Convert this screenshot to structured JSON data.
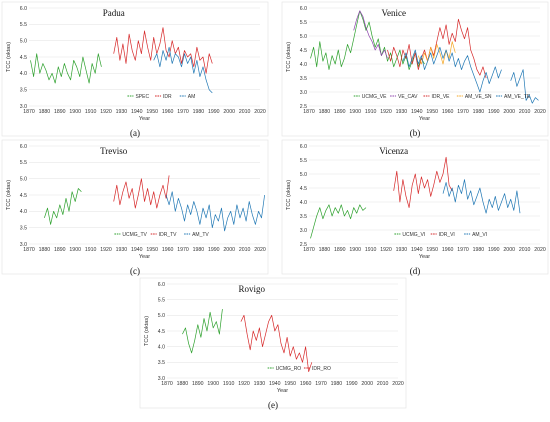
{
  "colors": {
    "green": "#2ca02c",
    "red": "#d62728",
    "blue": "#1f77b4",
    "purple": "#8e44ad",
    "orange": "#f5a623"
  },
  "chart_data": [
    {
      "type": "line",
      "title": "Padua",
      "caption": "(a)",
      "xlabel": "Year",
      "ylabel": "TCC (oktas)",
      "xlim": [
        1870,
        2020
      ],
      "ylim": [
        3.0,
        6.0
      ],
      "xticks": [
        1870,
        1880,
        1890,
        1900,
        1910,
        1920,
        1930,
        1940,
        1950,
        1960,
        1970,
        1980,
        1990,
        2000,
        2010,
        2020
      ],
      "yticks": [
        3.0,
        3.5,
        4.0,
        4.5,
        5.0,
        5.5,
        6.0
      ],
      "legend": "bottom",
      "series": [
        {
          "name": "SPEC",
          "color": "#2ca02c",
          "x": [
            1871,
            1873,
            1875,
            1877,
            1879,
            1881,
            1883,
            1885,
            1887,
            1889,
            1891,
            1893,
            1895,
            1897,
            1899,
            1901,
            1903,
            1905,
            1907,
            1909,
            1911,
            1913,
            1915,
            1917
          ],
          "y": [
            4.4,
            3.9,
            4.6,
            4.0,
            4.3,
            4.1,
            3.8,
            4.0,
            3.7,
            4.2,
            3.9,
            4.3,
            4.0,
            3.8,
            4.4,
            4.2,
            3.9,
            4.5,
            4.1,
            3.7,
            4.3,
            4.0,
            4.6,
            4.2
          ]
        },
        {
          "name": "IDR",
          "color": "#d62728",
          "x": [
            1925,
            1927,
            1929,
            1931,
            1933,
            1935,
            1937,
            1939,
            1941,
            1943,
            1945,
            1947,
            1949,
            1951,
            1953,
            1955,
            1957,
            1959,
            1961,
            1963,
            1965,
            1967,
            1969,
            1971,
            1973,
            1975,
            1977,
            1979,
            1981,
            1983,
            1985,
            1987,
            1989
          ],
          "y": [
            4.6,
            5.1,
            4.4,
            4.9,
            4.3,
            5.2,
            4.7,
            4.4,
            5.0,
            4.6,
            5.3,
            4.8,
            4.4,
            5.1,
            4.6,
            4.9,
            5.4,
            4.7,
            4.5,
            5.0,
            4.6,
            4.8,
            4.3,
            4.7,
            4.5,
            4.6,
            4.2,
            4.8,
            4.4,
            4.5,
            4.0,
            4.6,
            4.3
          ]
        },
        {
          "name": "AM",
          "color": "#1f77b4",
          "x": [
            1951,
            1953,
            1955,
            1957,
            1959,
            1961,
            1963,
            1965,
            1967,
            1969,
            1971,
            1973,
            1975,
            1977,
            1979,
            1981,
            1983,
            1985,
            1987,
            1989
          ],
          "y": [
            4.4,
            4.6,
            4.2,
            4.7,
            4.4,
            4.8,
            4.3,
            4.6,
            4.5,
            4.2,
            4.6,
            4.3,
            4.5,
            4.0,
            4.4,
            3.9,
            4.2,
            3.8,
            3.5,
            3.4
          ]
        }
      ]
    },
    {
      "type": "line",
      "title": "Venice",
      "caption": "(b)",
      "xlabel": "Year",
      "ylabel": "TCC (oktas)",
      "xlim": [
        1870,
        2020
      ],
      "ylim": [
        2.5,
        6.0
      ],
      "xticks": [
        1870,
        1880,
        1890,
        1900,
        1910,
        1920,
        1930,
        1940,
        1950,
        1960,
        1970,
        1980,
        1990,
        2000,
        2010,
        2020
      ],
      "yticks": [
        2.5,
        3.0,
        3.5,
        4.0,
        4.5,
        5.0,
        5.5,
        6.0
      ],
      "legend": "bottom",
      "series": [
        {
          "name": "UCMG_VE",
          "color": "#2ca02c",
          "x": [
            1871,
            1873,
            1875,
            1877,
            1879,
            1881,
            1883,
            1885,
            1887,
            1889,
            1891,
            1893,
            1895,
            1897,
            1899,
            1901,
            1903,
            1905,
            1907,
            1909,
            1911,
            1913,
            1915,
            1917,
            1919,
            1921,
            1923,
            1925,
            1927,
            1929,
            1931,
            1933,
            1935,
            1937,
            1939,
            1941,
            1943,
            1945
          ],
          "y": [
            4.2,
            4.6,
            3.9,
            4.8,
            4.1,
            4.4,
            3.8,
            4.3,
            4.0,
            4.5,
            3.9,
            4.2,
            4.7,
            4.4,
            4.9,
            5.4,
            5.9,
            5.6,
            5.2,
            5.5,
            5.0,
            4.6,
            4.9,
            4.3,
            4.6,
            4.1,
            4.4,
            3.9,
            4.2,
            4.5,
            4.0,
            4.3,
            3.8,
            4.1,
            4.4,
            3.9,
            4.2,
            4.0
          ]
        },
        {
          "name": "VE_CAV",
          "color": "#8e44ad",
          "x": [
            1899,
            1901,
            1903,
            1905,
            1907,
            1909,
            1911,
            1913,
            1915,
            1917,
            1919,
            1921
          ],
          "y": [
            5.2,
            5.6,
            5.9,
            5.7,
            5.3,
            5.0,
            4.8,
            4.5,
            4.7,
            4.3,
            4.5,
            4.2
          ]
        },
        {
          "name": "IDR_VE",
          "color": "#d62728",
          "x": [
            1921,
            1923,
            1925,
            1927,
            1929,
            1931,
            1933,
            1935,
            1937,
            1939,
            1941,
            1943,
            1945,
            1947,
            1949,
            1951,
            1953,
            1955,
            1957,
            1959,
            1961,
            1963,
            1965,
            1967,
            1969,
            1971,
            1973,
            1975,
            1977,
            1979,
            1981,
            1983,
            1985
          ],
          "y": [
            4.5,
            4.1,
            4.6,
            4.3,
            3.9,
            4.5,
            4.2,
            4.7,
            4.0,
            4.4,
            3.8,
            4.2,
            4.5,
            4.1,
            4.6,
            4.3,
            4.8,
            5.3,
            4.9,
            5.4,
            4.7,
            5.1,
            4.8,
            5.6,
            5.2,
            4.9,
            5.3,
            4.5,
            4.2,
            3.8,
            3.6,
            3.9,
            3.5
          ]
        },
        {
          "name": "AM_VE_SN",
          "color": "#f5a623",
          "x": [
            1941,
            1943,
            1945,
            1947,
            1949,
            1951,
            1953,
            1955,
            1957,
            1959,
            1961,
            1963,
            1965
          ],
          "y": [
            4.3,
            4.0,
            4.4,
            4.1,
            4.6,
            4.2,
            4.7,
            4.4,
            4.0,
            4.5,
            4.2,
            4.8,
            4.4
          ]
        },
        {
          "name": "AM_VE_TE",
          "color": "#1f77b4",
          "x": [
            1931,
            1933,
            1935,
            1937,
            1939,
            1941,
            1943,
            1945,
            1947,
            1949,
            1951,
            1953,
            1955,
            1957,
            1959,
            1961,
            1963,
            1965,
            1967,
            1969,
            1971,
            1973,
            1975,
            1977,
            1979,
            1981,
            1983,
            1985,
            1987,
            1989,
            1991,
            1993,
            1995,
            2001,
            2003,
            2005,
            2007,
            2009,
            2011,
            2013,
            2015,
            2017,
            2019
          ],
          "y": [
            4.1,
            4.4,
            3.9,
            4.2,
            4.5,
            4.0,
            4.3,
            3.8,
            4.1,
            4.4,
            4.0,
            4.3,
            4.6,
            4.2,
            4.5,
            4.1,
            4.4,
            3.9,
            4.2,
            3.8,
            4.1,
            4.3,
            3.9,
            3.6,
            3.3,
            3.0,
            3.4,
            3.7,
            3.3,
            3.6,
            3.9,
            3.5,
            3.8,
            3.4,
            3.7,
            3.2,
            3.5,
            3.8,
            2.7,
            2.9,
            2.6,
            2.8,
            2.7
          ]
        }
      ]
    },
    {
      "type": "line",
      "title": "Treviso",
      "caption": "(c)",
      "xlabel": "Year",
      "ylabel": "TCC (oktas)",
      "xlim": [
        1870,
        2020
      ],
      "ylim": [
        3.0,
        6.0
      ],
      "xticks": [
        1870,
        1880,
        1890,
        1900,
        1910,
        1920,
        1930,
        1940,
        1950,
        1960,
        1970,
        1980,
        1990,
        2000,
        2010,
        2020
      ],
      "yticks": [
        3.0,
        3.5,
        4.0,
        4.5,
        5.0,
        5.5,
        6.0
      ],
      "legend": "bottom",
      "series": [
        {
          "name": "UCMG_TV",
          "color": "#2ca02c",
          "x": [
            1880,
            1882,
            1884,
            1886,
            1888,
            1890,
            1892,
            1894,
            1896,
            1898,
            1900,
            1902,
            1904
          ],
          "y": [
            3.8,
            4.1,
            3.6,
            4.0,
            3.8,
            4.2,
            3.9,
            4.4,
            4.0,
            4.6,
            4.3,
            4.7,
            4.6
          ]
        },
        {
          "name": "IDR_TV",
          "color": "#d62728",
          "x": [
            1925,
            1927,
            1929,
            1931,
            1933,
            1935,
            1937,
            1939,
            1941,
            1943,
            1945,
            1947,
            1949,
            1951,
            1953,
            1955,
            1957,
            1959,
            1961
          ],
          "y": [
            4.3,
            4.8,
            4.2,
            4.6,
            4.9,
            4.4,
            4.7,
            4.1,
            4.5,
            5.0,
            4.3,
            4.7,
            4.2,
            4.6,
            4.1,
            4.5,
            4.8,
            4.4,
            5.1
          ]
        },
        {
          "name": "AM_TV",
          "color": "#1f77b4",
          "x": [
            1959,
            1961,
            1963,
            1965,
            1967,
            1969,
            1971,
            1973,
            1975,
            1977,
            1979,
            1981,
            1983,
            1985,
            1987,
            1989,
            1991,
            1993,
            1995,
            1997,
            1999,
            2001,
            2003,
            2005,
            2007,
            2009,
            2011,
            2013,
            2015,
            2017,
            2019,
            2021,
            2023
          ],
          "y": [
            4.5,
            4.2,
            4.6,
            4.0,
            4.4,
            4.1,
            3.7,
            4.2,
            3.9,
            4.3,
            4.0,
            3.6,
            4.1,
            3.8,
            4.2,
            3.5,
            3.9,
            3.7,
            4.1,
            3.4,
            3.8,
            4.0,
            3.6,
            4.2,
            3.8,
            4.1,
            3.7,
            4.3,
            3.9,
            3.6,
            4.0,
            3.8,
            4.5
          ]
        }
      ]
    },
    {
      "type": "line",
      "title": "Vicenza",
      "caption": "(d)",
      "xlabel": "Year",
      "ylabel": "TCC (oktas)",
      "xlim": [
        1870,
        2020
      ],
      "ylim": [
        2.5,
        6.0
      ],
      "xticks": [
        1870,
        1880,
        1890,
        1900,
        1910,
        1920,
        1930,
        1940,
        1950,
        1960,
        1970,
        1980,
        1990,
        2000,
        2010,
        2020
      ],
      "yticks": [
        2.5,
        3.0,
        3.5,
        4.0,
        4.5,
        5.0,
        5.5,
        6.0
      ],
      "legend": "bottom",
      "series": [
        {
          "name": "UCMG_VI",
          "color": "#2ca02c",
          "x": [
            1871,
            1873,
            1875,
            1877,
            1879,
            1881,
            1883,
            1885,
            1887,
            1889,
            1891,
            1893,
            1895,
            1897,
            1899,
            1901,
            1903,
            1905,
            1907
          ],
          "y": [
            2.7,
            3.1,
            3.5,
            3.8,
            3.4,
            3.7,
            3.9,
            3.5,
            3.8,
            3.6,
            3.9,
            3.5,
            3.7,
            3.4,
            3.8,
            3.6,
            3.9,
            3.7,
            3.8
          ]
        },
        {
          "name": "IDR_VI",
          "color": "#d62728",
          "x": [
            1925,
            1927,
            1929,
            1931,
            1933,
            1935,
            1937,
            1939,
            1941,
            1943,
            1945,
            1947,
            1949,
            1951,
            1953,
            1955,
            1957,
            1959,
            1961,
            1963
          ],
          "y": [
            4.4,
            5.1,
            4.0,
            4.8,
            4.2,
            3.8,
            4.6,
            5.0,
            4.3,
            4.9,
            4.5,
            4.8,
            4.2,
            4.6,
            5.1,
            4.7,
            5.0,
            5.6,
            4.6,
            4.4
          ]
        },
        {
          "name": "AM_VI",
          "color": "#1f77b4",
          "x": [
            1957,
            1959,
            1961,
            1963,
            1965,
            1967,
            1969,
            1971,
            1973,
            1975,
            1977,
            1979,
            1981,
            1983,
            1985,
            1987,
            1989,
            1991,
            1993,
            1995,
            1997,
            1999,
            2001,
            2003,
            2005,
            2007
          ],
          "y": [
            4.3,
            4.7,
            4.2,
            4.5,
            4.0,
            4.6,
            4.3,
            4.8,
            4.1,
            4.4,
            3.9,
            4.2,
            4.5,
            4.0,
            3.6,
            4.1,
            3.8,
            4.2,
            3.7,
            4.0,
            4.3,
            3.8,
            4.1,
            3.7,
            4.4,
            3.6
          ]
        }
      ]
    },
    {
      "type": "line",
      "title": "Rovigo",
      "caption": "(e)",
      "xlabel": "Year",
      "ylabel": "TCC (oktas)",
      "xlim": [
        1870,
        2020
      ],
      "ylim": [
        3.0,
        6.0
      ],
      "xticks": [
        1870,
        1880,
        1890,
        1900,
        1910,
        1920,
        1930,
        1940,
        1950,
        1960,
        1970,
        1980,
        1990,
        2000,
        2010,
        2020
      ],
      "yticks": [
        3.0,
        3.5,
        4.0,
        4.5,
        5.0,
        5.5,
        6.0
      ],
      "legend": "bottom",
      "series": [
        {
          "name": "UCMG_RO",
          "color": "#2ca02c",
          "x": [
            1880,
            1882,
            1884,
            1886,
            1888,
            1890,
            1892,
            1894,
            1896,
            1898,
            1900,
            1902,
            1904,
            1906
          ],
          "y": [
            4.4,
            4.6,
            4.1,
            3.8,
            4.2,
            4.7,
            4.3,
            4.9,
            4.5,
            5.1,
            4.6,
            4.8,
            4.4,
            5.2
          ]
        },
        {
          "name": "IDR_RO",
          "color": "#d62728",
          "x": [
            1918,
            1920,
            1922,
            1924,
            1926,
            1928,
            1930,
            1932,
            1934,
            1936,
            1938,
            1940,
            1942,
            1944,
            1946,
            1948,
            1950,
            1952,
            1954,
            1956,
            1958,
            1960,
            1962,
            1964
          ],
          "y": [
            4.8,
            5.0,
            4.4,
            3.9,
            4.5,
            4.2,
            4.6,
            4.0,
            4.4,
            4.8,
            5.0,
            4.5,
            4.7,
            4.1,
            3.8,
            4.3,
            3.7,
            4.0,
            3.6,
            3.8,
            3.5,
            4.0,
            3.2,
            3.5
          ]
        }
      ]
    }
  ]
}
